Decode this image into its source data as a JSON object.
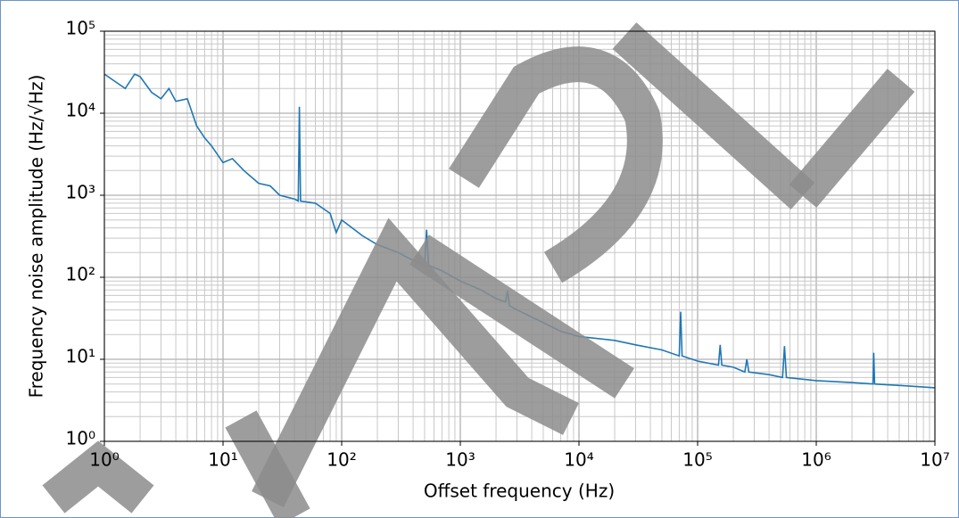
{
  "chart_data": {
    "type": "line",
    "xlabel": "Offset frequency (Hz)",
    "ylabel": "Frequency noise amplitude (Hz/√Hz)",
    "xscale": "log",
    "yscale": "log",
    "grid": true,
    "minor_grid": true,
    "xlim": [
      1,
      10000000
    ],
    "ylim": [
      1,
      100000
    ],
    "xticks": [
      {
        "value": 1,
        "label": "10⁰"
      },
      {
        "value": 10,
        "label": "10¹"
      },
      {
        "value": 100,
        "label": "10²"
      },
      {
        "value": 1000,
        "label": "10³"
      },
      {
        "value": 10000,
        "label": "10⁴"
      },
      {
        "value": 100000,
        "label": "10⁵"
      },
      {
        "value": 1000000,
        "label": "10⁶"
      },
      {
        "value": 10000000,
        "label": "10⁷"
      }
    ],
    "yticks": [
      {
        "value": 1,
        "label": "10⁰"
      },
      {
        "value": 10,
        "label": "10¹"
      },
      {
        "value": 100,
        "label": "10²"
      },
      {
        "value": 1000,
        "label": "10³"
      },
      {
        "value": 10000,
        "label": "10⁴"
      },
      {
        "value": 100000,
        "label": "10⁵"
      }
    ],
    "x": [
      1,
      1.2,
      1.5,
      1.8,
      2,
      2.5,
      3,
      3.5,
      4,
      5,
      6,
      7,
      8,
      10,
      12,
      15,
      20,
      25,
      30,
      40,
      43,
      44,
      45,
      60,
      80,
      90,
      100,
      150,
      200,
      300,
      400,
      500,
      520,
      540,
      700,
      1000,
      1500,
      2000,
      2400,
      2500,
      2600,
      3000,
      5000,
      7000,
      10000,
      20000,
      30000,
      50000,
      70000,
      72000,
      74000,
      100000,
      150000,
      155000,
      160000,
      200000,
      250000,
      260000,
      270000,
      400000,
      520000,
      540000,
      560000,
      1000000,
      2000000,
      3000000,
      3050000,
      3100000,
      5000000,
      10000000
    ],
    "series": [
      {
        "name": "frequency noise",
        "color": "#1f77b4",
        "values": [
          30000,
          25000,
          20000,
          30000,
          28000,
          18000,
          15000,
          20000,
          14000,
          15000,
          7000,
          5000,
          4000,
          2500,
          2800,
          2000,
          1400,
          1300,
          1000,
          900,
          850,
          12000,
          850,
          800,
          600,
          350,
          500,
          320,
          250,
          200,
          160,
          140,
          380,
          140,
          120,
          90,
          70,
          55,
          50,
          68,
          45,
          40,
          28,
          22,
          19,
          17,
          15,
          13,
          11,
          38,
          11,
          9.5,
          8.5,
          15,
          8.5,
          8,
          7,
          10,
          7,
          6.5,
          6,
          14.5,
          6,
          5.5,
          5.2,
          5,
          12,
          5,
          4.8,
          4.5
        ]
      }
    ]
  }
}
